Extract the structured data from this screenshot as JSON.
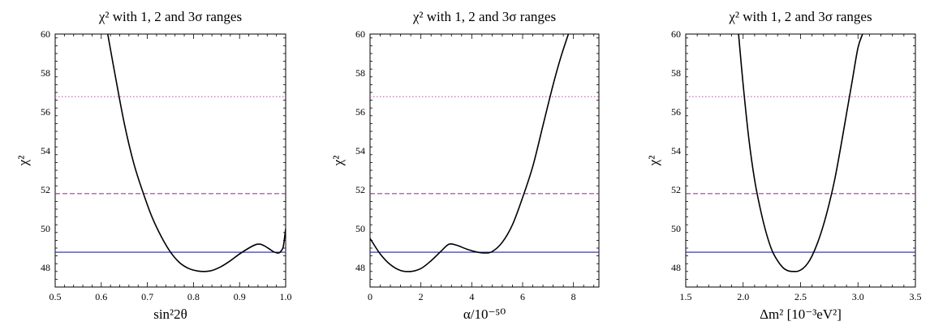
{
  "chart_data": [
    {
      "type": "line",
      "title": "χ² with 1, 2 and 3σ ranges",
      "xlabel": "sin²2θ",
      "ylabel": "χ²",
      "xlim": [
        0.5,
        1.0
      ],
      "ylim": [
        47,
        60
      ],
      "xticks": [
        0.5,
        0.6,
        0.7,
        0.8,
        0.9,
        1.0
      ],
      "xtick_labels": [
        "0.5",
        "0.6",
        "0.7",
        "0.8",
        "0.9",
        "1.0"
      ],
      "yticks": [
        48,
        50,
        52,
        54,
        56,
        58,
        60
      ],
      "ytick_labels": [
        "48",
        "50",
        "52",
        "54",
        "56",
        "58",
        "60"
      ],
      "grid": false,
      "series": [
        {
          "style": "solid",
          "color": "#000000",
          "x": [
            0.614,
            0.63,
            0.65,
            0.67,
            0.69,
            0.71,
            0.73,
            0.75,
            0.77,
            0.79,
            0.81,
            0.825,
            0.84,
            0.86,
            0.88,
            0.9,
            0.92,
            0.935,
            0.945,
            0.955,
            0.965,
            0.975,
            0.985,
            0.99,
            0.995,
            1.0
          ],
          "y": [
            60.0,
            57.9,
            55.4,
            53.4,
            51.9,
            50.6,
            49.6,
            48.8,
            48.25,
            47.95,
            47.82,
            47.8,
            47.85,
            48.05,
            48.35,
            48.7,
            49.0,
            49.18,
            49.2,
            49.1,
            48.95,
            48.8,
            48.75,
            48.85,
            49.1,
            50.0
          ]
        }
      ],
      "reference_lines": [
        {
          "y": 48.79,
          "style": "solid",
          "color": "#2222bb"
        },
        {
          "y": 51.8,
          "style": "dashed",
          "color": "#8e4a8e"
        },
        {
          "y": 56.78,
          "style": "dotted",
          "color": "#cc66cc"
        }
      ]
    },
    {
      "type": "line",
      "title": "χ² with 1, 2 and 3σ ranges",
      "xlabel": "α/10⁻⁵⁰",
      "ylabel": "χ²",
      "xlim": [
        0,
        9
      ],
      "ylim": [
        47,
        60
      ],
      "xticks": [
        0,
        2,
        4,
        6,
        8
      ],
      "xtick_labels": [
        "0",
        "2",
        "4",
        "6",
        "8"
      ],
      "yticks": [
        48,
        50,
        52,
        54,
        56,
        58,
        60
      ],
      "ytick_labels": [
        "48",
        "50",
        "52",
        "54",
        "56",
        "58",
        "60"
      ],
      "grid": false,
      "series": [
        {
          "style": "solid",
          "color": "#000000",
          "x": [
            0,
            0.4,
            0.8,
            1.2,
            1.6,
            2.0,
            2.4,
            2.8,
            3.1,
            3.4,
            3.8,
            4.2,
            4.5,
            4.8,
            5.2,
            5.6,
            6.0,
            6.4,
            6.8,
            7.2,
            7.5,
            7.8
          ],
          "y": [
            49.5,
            48.7,
            48.15,
            47.85,
            47.8,
            47.95,
            48.35,
            48.85,
            49.2,
            49.15,
            48.95,
            48.8,
            48.75,
            48.82,
            49.3,
            50.2,
            51.6,
            53.2,
            55.3,
            57.4,
            58.8,
            60.0
          ]
        }
      ],
      "reference_lines": [
        {
          "y": 48.79,
          "style": "solid",
          "color": "#2222bb"
        },
        {
          "y": 51.8,
          "style": "dashed",
          "color": "#8e4a8e"
        },
        {
          "y": 56.78,
          "style": "dotted",
          "color": "#cc66cc"
        }
      ]
    },
    {
      "type": "line",
      "title": "χ² with 1, 2 and 3σ ranges",
      "xlabel": "Δm² [10⁻³eV²]",
      "ylabel": "χ²",
      "xlim": [
        1.5,
        3.5
      ],
      "ylim": [
        47,
        60
      ],
      "xticks": [
        1.5,
        2.0,
        2.5,
        3.0,
        3.5
      ],
      "xtick_labels": [
        "1.5",
        "2.0",
        "2.5",
        "3.0",
        "3.5"
      ],
      "yticks": [
        48,
        50,
        52,
        54,
        56,
        58,
        60
      ],
      "ytick_labels": [
        "48",
        "50",
        "52",
        "54",
        "56",
        "58",
        "60"
      ],
      "grid": false,
      "series": [
        {
          "style": "solid",
          "color": "#000000",
          "x": [
            1.96,
            2.0,
            2.05,
            2.1,
            2.15,
            2.2,
            2.25,
            2.3,
            2.35,
            2.4,
            2.45,
            2.48,
            2.52,
            2.56,
            2.6,
            2.65,
            2.7,
            2.75,
            2.8,
            2.85,
            2.9,
            2.95,
            3.0,
            3.04
          ],
          "y": [
            60.0,
            57.4,
            54.6,
            52.5,
            51.0,
            49.8,
            48.9,
            48.35,
            47.98,
            47.82,
            47.8,
            47.82,
            47.95,
            48.2,
            48.6,
            49.3,
            50.2,
            51.3,
            52.6,
            54.2,
            55.9,
            57.6,
            59.3,
            60.0
          ]
        }
      ],
      "reference_lines": [
        {
          "y": 48.79,
          "style": "solid",
          "color": "#2222bb"
        },
        {
          "y": 51.8,
          "style": "dashed",
          "color": "#8e4a8e"
        },
        {
          "y": 56.78,
          "style": "dotted",
          "color": "#cc66cc"
        }
      ]
    }
  ]
}
